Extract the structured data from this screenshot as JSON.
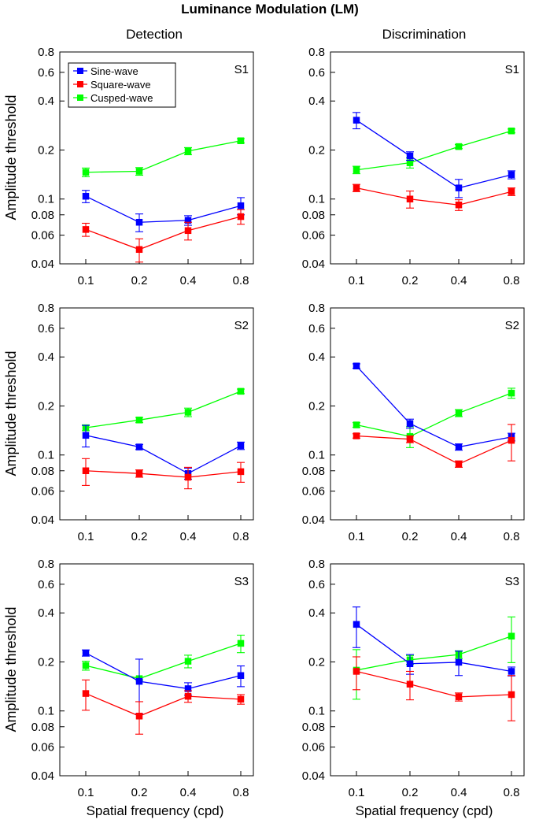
{
  "figure": {
    "title": "Luminance Modulation (LM)",
    "columns": [
      "Detection",
      "Discrimination"
    ],
    "ylabel": "Amplitude threshold",
    "xlabel": "Spatial frequency (cpd)"
  },
  "legend": [
    {
      "name": "Sine-wave",
      "color": "#0000ff"
    },
    {
      "name": "Square-wave",
      "color": "#ff0000"
    },
    {
      "name": "Cusped-wave",
      "color": "#00ff00"
    }
  ],
  "chart_data": [
    {
      "type": "line",
      "task": "Detection",
      "subject": "S1",
      "x": [
        0.1,
        0.2,
        0.4,
        0.8
      ],
      "x_tick_labels": [
        "0.1",
        "0.2",
        "0.4",
        "0.8"
      ],
      "y_tick_labels": [
        "0.8",
        "0.6",
        "0.4",
        "0.2",
        "0.1",
        "0.08",
        "0.06",
        "0.04"
      ],
      "y_ticks": [
        0.8,
        0.6,
        0.4,
        0.2,
        0.1,
        0.08,
        0.06,
        0.04
      ],
      "ylim": [
        0.04,
        0.8
      ],
      "yscale": "log",
      "xscale": "log",
      "series": [
        {
          "name": "Sine-wave",
          "color": "#0000ff",
          "values": [
            0.104,
            0.072,
            0.074,
            0.091
          ],
          "err": [
            0.009,
            0.009,
            0.005,
            0.011
          ]
        },
        {
          "name": "Square-wave",
          "color": "#ff0000",
          "values": [
            0.065,
            0.049,
            0.064,
            0.078
          ],
          "err": [
            0.006,
            0.008,
            0.008,
            0.008
          ]
        },
        {
          "name": "Cusped-wave",
          "color": "#00ff00",
          "values": [
            0.146,
            0.148,
            0.197,
            0.228
          ],
          "err": [
            0.009,
            0.008,
            0.01,
            0.007
          ]
        }
      ]
    },
    {
      "type": "line",
      "task": "Discrimination",
      "subject": "S1",
      "x": [
        0.1,
        0.2,
        0.4,
        0.8
      ],
      "x_tick_labels": [
        "0.1",
        "0.2",
        "0.4",
        "0.8"
      ],
      "y_tick_labels": [
        "0.8",
        "0.6",
        "0.4",
        "0.2",
        "0.1",
        "0.08",
        "0.06",
        "0.04"
      ],
      "y_ticks": [
        0.8,
        0.6,
        0.4,
        0.2,
        0.1,
        0.08,
        0.06,
        0.04
      ],
      "ylim": [
        0.04,
        0.8
      ],
      "yscale": "log",
      "xscale": "log",
      "series": [
        {
          "name": "Sine-wave",
          "color": "#0000ff",
          "values": [
            0.305,
            0.184,
            0.117,
            0.141
          ],
          "err": [
            0.035,
            0.011,
            0.015,
            0.008
          ]
        },
        {
          "name": "Square-wave",
          "color": "#ff0000",
          "values": [
            0.117,
            0.1,
            0.092,
            0.111
          ],
          "err": [
            0.006,
            0.012,
            0.007,
            0.006
          ]
        },
        {
          "name": "Cusped-wave",
          "color": "#00ff00",
          "values": [
            0.151,
            0.167,
            0.21,
            0.262
          ],
          "err": [
            0.008,
            0.012,
            0.006,
            0.007
          ]
        }
      ]
    },
    {
      "type": "line",
      "task": "Detection",
      "subject": "S2",
      "x": [
        0.1,
        0.2,
        0.4,
        0.8
      ],
      "x_tick_labels": [
        "0.1",
        "0.2",
        "0.4",
        "0.8"
      ],
      "y_tick_labels": [
        "0.8",
        "0.6",
        "0.4",
        "0.2",
        "0.1",
        "0.08",
        "0.06",
        "0.04"
      ],
      "y_ticks": [
        0.8,
        0.6,
        0.4,
        0.2,
        0.1,
        0.08,
        0.06,
        0.04
      ],
      "ylim": [
        0.04,
        0.8
      ],
      "yscale": "log",
      "xscale": "log",
      "series": [
        {
          "name": "Sine-wave",
          "color": "#0000ff",
          "values": [
            0.132,
            0.112,
            0.077,
            0.114
          ],
          "err": [
            0.02,
            0.004,
            0.006,
            0.006
          ]
        },
        {
          "name": "Square-wave",
          "color": "#ff0000",
          "values": [
            0.08,
            0.077,
            0.073,
            0.079
          ],
          "err": [
            0.015,
            0.004,
            0.011,
            0.011
          ]
        },
        {
          "name": "Cusped-wave",
          "color": "#00ff00",
          "values": [
            0.147,
            0.164,
            0.183,
            0.246
          ],
          "err": [
            0.006,
            0.006,
            0.011,
            0.008
          ]
        }
      ]
    },
    {
      "type": "line",
      "task": "Discrimination",
      "subject": "S2",
      "x": [
        0.1,
        0.2,
        0.4,
        0.8
      ],
      "x_tick_labels": [
        "0.1",
        "0.2",
        "0.4",
        "0.8"
      ],
      "y_tick_labels": [
        "0.8",
        "0.6",
        "0.4",
        "0.2",
        "0.1",
        "0.08",
        "0.06",
        "0.04"
      ],
      "y_ticks": [
        0.8,
        0.6,
        0.4,
        0.2,
        0.1,
        0.08,
        0.06,
        0.04
      ],
      "ylim": [
        0.04,
        0.8
      ],
      "yscale": "log",
      "xscale": "log",
      "series": [
        {
          "name": "Sine-wave",
          "color": "#0000ff",
          "values": [
            0.352,
            0.156,
            0.112,
            0.129
          ],
          "err": [
            0.011,
            0.01,
            0.005,
            0.007
          ]
        },
        {
          "name": "Square-wave",
          "color": "#ff0000",
          "values": [
            0.131,
            0.125,
            0.088,
            0.123
          ],
          "err": [
            0.004,
            0.006,
            0.004,
            0.031
          ]
        },
        {
          "name": "Cusped-wave",
          "color": "#00ff00",
          "values": [
            0.153,
            0.13,
            0.181,
            0.24
          ],
          "err": [
            0.005,
            0.019,
            0.009,
            0.017
          ]
        }
      ]
    },
    {
      "type": "line",
      "task": "Detection",
      "subject": "S3",
      "x": [
        0.1,
        0.2,
        0.4,
        0.8
      ],
      "x_tick_labels": [
        "0.1",
        "0.2",
        "0.4",
        "0.8"
      ],
      "y_tick_labels": [
        "0.8",
        "0.6",
        "0.4",
        "0.2",
        "0.1",
        "0.08",
        "0.06",
        "0.04"
      ],
      "y_ticks": [
        0.8,
        0.6,
        0.4,
        0.2,
        0.1,
        0.08,
        0.06,
        0.04
      ],
      "ylim": [
        0.04,
        0.8
      ],
      "yscale": "log",
      "xscale": "log",
      "series": [
        {
          "name": "Sine-wave",
          "color": "#0000ff",
          "values": [
            0.227,
            0.152,
            0.137,
            0.165
          ],
          "err": [
            0.01,
            0.056,
            0.012,
            0.024
          ]
        },
        {
          "name": "Square-wave",
          "color": "#ff0000",
          "values": [
            0.128,
            0.093,
            0.123,
            0.118
          ],
          "err": [
            0.027,
            0.021,
            0.01,
            0.008
          ]
        },
        {
          "name": "Cusped-wave",
          "color": "#00ff00",
          "values": [
            0.19,
            0.158,
            0.202,
            0.26
          ],
          "err": [
            0.012,
            0.003,
            0.018,
            0.032
          ]
        }
      ]
    },
    {
      "type": "line",
      "task": "Discrimination",
      "subject": "S3",
      "x": [
        0.1,
        0.2,
        0.4,
        0.8
      ],
      "x_tick_labels": [
        "0.1",
        "0.2",
        "0.4",
        "0.8"
      ],
      "y_tick_labels": [
        "0.8",
        "0.6",
        "0.4",
        "0.2",
        "0.1",
        "0.08",
        "0.06",
        "0.04"
      ],
      "y_ticks": [
        0.8,
        0.6,
        0.4,
        0.2,
        0.1,
        0.08,
        0.06,
        0.04
      ],
      "ylim": [
        0.04,
        0.8
      ],
      "yscale": "log",
      "xscale": "log",
      "series": [
        {
          "name": "Sine-wave",
          "color": "#0000ff",
          "values": [
            0.34,
            0.195,
            0.199,
            0.175
          ],
          "err": [
            0.095,
            0.027,
            0.034,
            0.011
          ]
        },
        {
          "name": "Square-wave",
          "color": "#ff0000",
          "values": [
            0.175,
            0.146,
            0.122,
            0.126
          ],
          "err": [
            0.04,
            0.029,
            0.007,
            0.039
          ]
        },
        {
          "name": "Cusped-wave",
          "color": "#00ff00",
          "values": [
            0.178,
            0.206,
            0.222,
            0.288
          ],
          "err": [
            0.06,
            0.013,
            0.012,
            0.09
          ]
        }
      ]
    }
  ]
}
